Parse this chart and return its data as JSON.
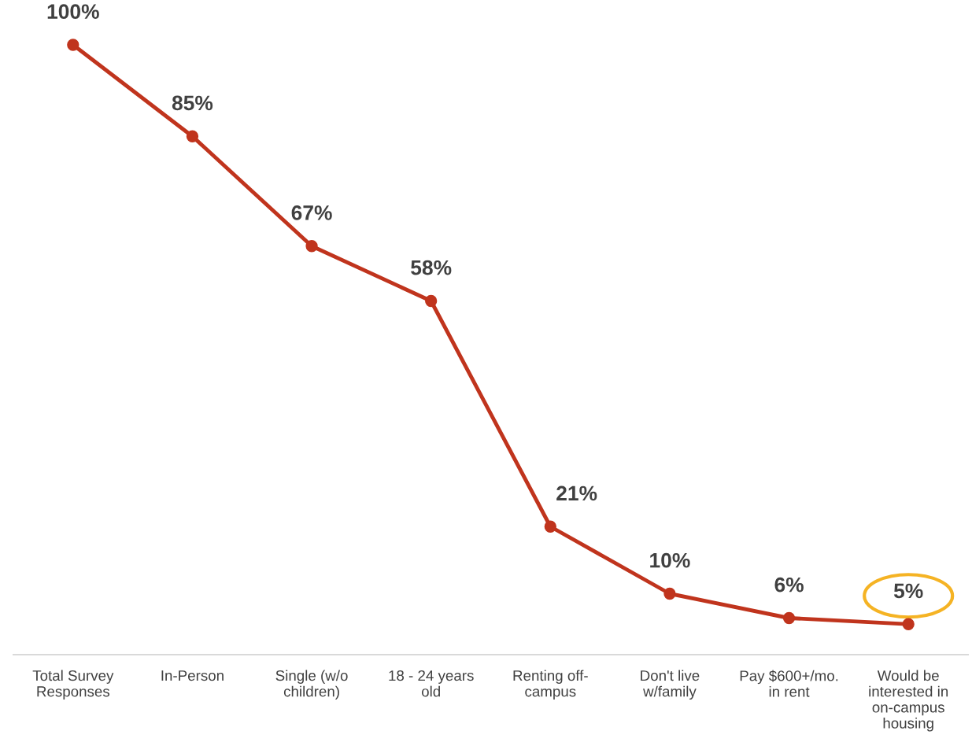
{
  "chart_data": {
    "type": "line",
    "categories": [
      "Total Survey\nResponses",
      "In-Person",
      "Single (w/o\nchildren)",
      "18 - 24 years\nold",
      "Renting off-\ncampus",
      "Don't live\nw/family",
      "Pay $600+/mo.\nin rent",
      "Would be\ninterested in\non-campus\nhousing"
    ],
    "series": [
      {
        "color": "#c0341d",
        "values": [
          100,
          85,
          67,
          58,
          21,
          10,
          6,
          5
        ],
        "value_labels": [
          "100%",
          "85%",
          "67%",
          "58%",
          "21%",
          "10%",
          "6%",
          "5%"
        ]
      }
    ],
    "marker": "circle",
    "line_style": "solid",
    "grid": false,
    "legend": false,
    "tick_labels": "x"
  }
}
